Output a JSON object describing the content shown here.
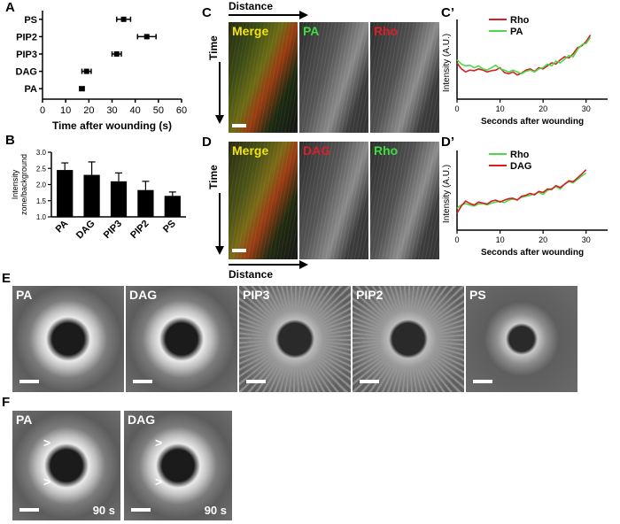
{
  "panel_labels": {
    "a": "A",
    "b": "B",
    "c": "C",
    "c_prime": "C’",
    "d": "D",
    "d_prime": "D’",
    "e": "E",
    "f": "F"
  },
  "chart_data": [
    {
      "id": "A",
      "type": "scatter",
      "categories": [
        "PS",
        "PIP2",
        "PIP3",
        "DAG",
        "PA"
      ],
      "values": [
        35,
        45,
        32,
        19,
        17
      ],
      "errors": [
        3,
        4,
        2,
        2,
        1
      ],
      "xlabel": "Time after wounding (s)",
      "ylabel": "",
      "xlim": [
        0,
        60
      ],
      "xticks": [
        0,
        10,
        20,
        30,
        40,
        50,
        60
      ],
      "orientation": "horizontal"
    },
    {
      "id": "B",
      "type": "bar",
      "categories": [
        "PA",
        "DAG",
        "PIP3",
        "PIP2",
        "PS"
      ],
      "values": [
        2.45,
        2.3,
        2.1,
        1.83,
        1.65
      ],
      "errors": [
        0.22,
        0.4,
        0.26,
        0.27,
        0.12
      ],
      "ylabel_lines": [
        "Intensity",
        "zone/background"
      ],
      "ylim": [
        1.0,
        3.0
      ],
      "yticks": [
        "1.0",
        "1.5",
        "2.0",
        "2.5",
        "3.0"
      ]
    },
    {
      "id": "C’",
      "type": "line",
      "xlabel": "Seconds after wounding",
      "ylabel": "Intensity (A.U.)",
      "xlim": [
        0,
        35
      ],
      "xticks": [
        0,
        10,
        20,
        30
      ],
      "ylim": [
        0,
        120
      ],
      "yticks": [],
      "series": [
        {
          "name": "Rho",
          "color": "#d81e1e",
          "x": [
            0,
            1,
            2,
            3,
            4,
            5,
            6,
            7,
            8,
            9,
            10,
            11,
            12,
            13,
            14,
            15,
            16,
            17,
            18,
            19,
            20,
            21,
            22,
            23,
            24,
            25,
            26,
            27,
            28,
            29,
            30,
            31
          ],
          "y": [
            60,
            50,
            45,
            48,
            47,
            50,
            48,
            45,
            47,
            48,
            52,
            44,
            42,
            45,
            40,
            43,
            48,
            50,
            46,
            52,
            50,
            55,
            60,
            58,
            65,
            70,
            68,
            75,
            85,
            88,
            95,
            106
          ]
        },
        {
          "name": "PA",
          "color": "#49d94a",
          "x": [
            0,
            1,
            2,
            3,
            4,
            5,
            6,
            7,
            8,
            9,
            10,
            11,
            12,
            13,
            14,
            15,
            16,
            17,
            18,
            19,
            20,
            21,
            22,
            23,
            24,
            25,
            26,
            27,
            28,
            29,
            30,
            31
          ],
          "y": [
            65,
            58,
            55,
            56,
            52,
            55,
            50,
            48,
            52,
            56,
            50,
            48,
            45,
            48,
            45,
            42,
            46,
            48,
            45,
            50,
            52,
            58,
            55,
            63,
            60,
            66,
            72,
            70,
            82,
            90,
            92,
            102
          ]
        }
      ]
    },
    {
      "id": "D’",
      "type": "line",
      "xlabel": "Seconds after wounding",
      "ylabel": "Intensity (A.U.)",
      "xlim": [
        0,
        35
      ],
      "xticks": [
        0,
        10,
        20,
        30
      ],
      "ylim": [
        0,
        150
      ],
      "yticks": [],
      "series": [
        {
          "name": "Rho",
          "color": "#49d94a",
          "x": [
            0,
            1,
            2,
            3,
            4,
            5,
            6,
            7,
            8,
            9,
            10,
            11,
            12,
            13,
            14,
            15,
            16,
            17,
            18,
            19,
            20,
            21,
            22,
            23,
            24,
            25,
            26,
            27,
            28,
            29,
            30
          ],
          "y": [
            45,
            52,
            55,
            52,
            50,
            54,
            55,
            52,
            56,
            58,
            60,
            57,
            62,
            64,
            63,
            68,
            70,
            72,
            75,
            78,
            74,
            82,
            86,
            90,
            85,
            95,
            100,
            98,
            105,
            112,
            118
          ]
        },
        {
          "name": "DAG",
          "color": "#d81e1e",
          "x": [
            0,
            1,
            2,
            3,
            4,
            5,
            6,
            7,
            8,
            9,
            10,
            11,
            12,
            13,
            14,
            15,
            16,
            17,
            18,
            19,
            20,
            21,
            22,
            23,
            24,
            25,
            26,
            27,
            28,
            29,
            30
          ],
          "y": [
            35,
            50,
            60,
            55,
            52,
            58,
            56,
            54,
            60,
            62,
            58,
            62,
            65,
            66,
            62,
            70,
            72,
            76,
            73,
            80,
            78,
            85,
            84,
            92,
            88,
            95,
            102,
            100,
            108,
            116,
            125
          ]
        }
      ]
    }
  ],
  "kymo": {
    "distance_label": "Distance",
    "time_label": "Time",
    "c": {
      "merge": "Merge",
      "ch2": "PA",
      "ch3": "Rho"
    },
    "d": {
      "merge": "Merge",
      "ch2": "DAG",
      "ch3": "Rho"
    },
    "colors": {
      "yellow": "#f2e30f",
      "green": "#3fdc3f",
      "red": "#d8202a"
    }
  },
  "e_panels": [
    "PA",
    "DAG",
    "PIP3",
    "PIP2",
    "PS"
  ],
  "f_panels": [
    {
      "label": "PA",
      "time": "90 s"
    },
    {
      "label": "DAG",
      "time": "90 s"
    }
  ]
}
